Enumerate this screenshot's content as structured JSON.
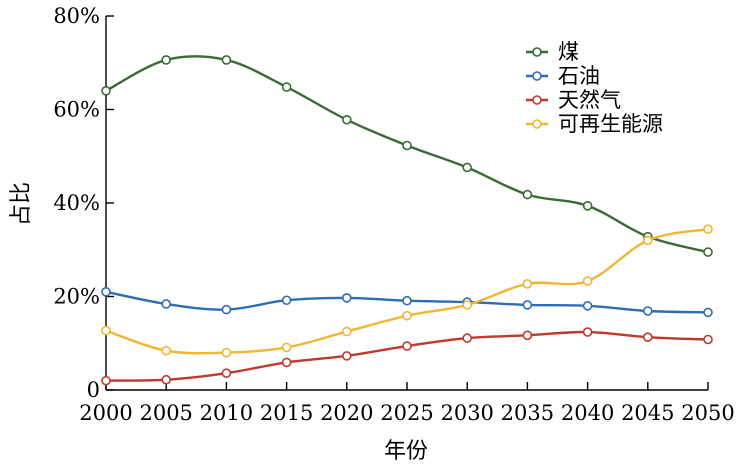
{
  "chart_data": {
    "type": "line",
    "xlabel": "年份",
    "ylabel": "占比",
    "x": [
      2000,
      2005,
      2010,
      2015,
      2020,
      2025,
      2030,
      2035,
      2040,
      2045,
      2050
    ],
    "xlim": [
      2000,
      2050
    ],
    "ylim": [
      0,
      80
    ],
    "y_ticks": [
      0,
      20,
      40,
      60,
      80
    ],
    "y_tick_labels": [
      "0",
      "20%",
      "40%",
      "60%",
      "80%"
    ],
    "x_tick_labels": [
      "2000",
      "2005",
      "2010",
      "2015",
      "2020",
      "2025",
      "2030",
      "2035",
      "2040",
      "2045",
      "2050"
    ],
    "grid": false,
    "legend_position": "top-right",
    "series": [
      {
        "name": "煤",
        "color": "#3a6b35",
        "values": [
          64,
          70.6,
          70.6,
          64.8,
          57.8,
          52.3,
          47.6,
          41.8,
          39.4,
          32.8,
          29.5
        ]
      },
      {
        "name": "石油",
        "color": "#2e6db4",
        "values": [
          21,
          18.4,
          17.2,
          19.2,
          19.7,
          19.1,
          18.8,
          18.2,
          18,
          16.9,
          16.6
        ]
      },
      {
        "name": "天然气",
        "color": "#c0392b",
        "values": [
          2,
          2.2,
          3.6,
          5.9,
          7.3,
          9.4,
          11.1,
          11.7,
          12.4,
          11.3,
          10.8
        ]
      },
      {
        "name": "可再生能源",
        "color": "#f2b632",
        "values": [
          12.7,
          8.4,
          8,
          9.1,
          12.5,
          15.9,
          18.2,
          22.7,
          23.3,
          32,
          34.4
        ]
      }
    ]
  }
}
